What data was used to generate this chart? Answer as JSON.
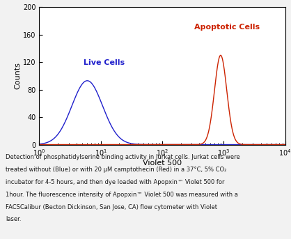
{
  "title": "",
  "xlabel": "Violet 500",
  "ylabel": "Counts",
  "xlim_log": [
    0,
    4
  ],
  "ylim": [
    0,
    200
  ],
  "yticks": [
    0,
    40,
    80,
    120,
    160,
    200
  ],
  "blue_label": "Live Cells",
  "red_label": "Apoptotic Cells",
  "blue_color": "#2020CC",
  "red_color": "#CC2200",
  "blue_peak_log": 0.78,
  "blue_peak_height": 93,
  "blue_sigma_log": 0.25,
  "red_peak_log": 2.95,
  "red_peak_height": 130,
  "red_sigma_log": 0.1,
  "caption_line1": "Detection of phosphatidylserine binding activity in Jurkat cells. Jurkat cells were",
  "caption_line2": "treated without (Blue) or with 20 μM camptothecin (Red) in a 37°C, 5% CO₂",
  "caption_line3": "incubator for 4-5 hours, and then dye loaded with Apopxin™ Violet 500 for",
  "caption_line4": "1hour. The fluorescence intensity of Apopxin™ Violet 500 was measured with a",
  "caption_line5": "FACSCalibur (Becton Dickinson, San Jose, CA) flow cytometer with Violet",
  "caption_line6": "laser.",
  "background_color": "#f2f2f2",
  "plot_bg": "#ffffff"
}
